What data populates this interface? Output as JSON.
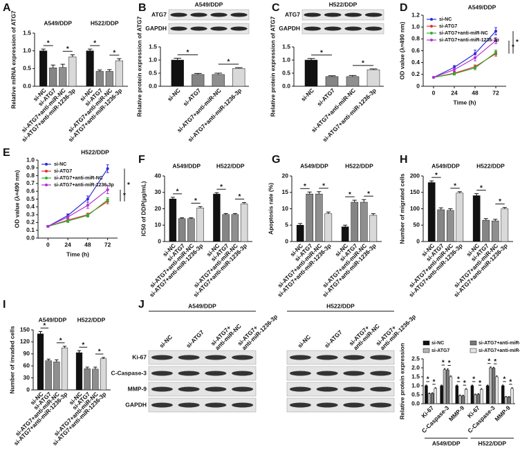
{
  "chart_data": [
    {
      "type": "bar",
      "label": "A",
      "ylabel": "Relative mRNA expression of ATG7",
      "categories": [
        "si-NC",
        "si-ATG7",
        "si-ATG7+anti-miR-NC",
        "si-ATG7+anti-miR-1236-3p"
      ],
      "colors": [
        "#111111",
        "#858585",
        "#8f8f8f",
        "#d9d9d9"
      ],
      "series": [
        {
          "name": "A549/DDP",
          "values": [
            1.0,
            0.52,
            0.53,
            0.83
          ],
          "errors": [
            0.05,
            0.08,
            0.09,
            0.06
          ]
        },
        {
          "name": "H522/DDP",
          "values": [
            1.0,
            0.42,
            0.42,
            0.72
          ],
          "errors": [
            0.05,
            0.04,
            0.05,
            0.06
          ]
        }
      ],
      "ylim": [
        0,
        1.5
      ],
      "yticks": [
        {
          "value": 0,
          "label": "0.0"
        },
        0.5,
        {
          "value": 1,
          "label": "1.0"
        },
        1.5
      ],
      "significance": "*"
    },
    {
      "type": "bar",
      "label": "B",
      "title": "A549/DDP",
      "proteins": [
        "ATG7",
        "GAPDH"
      ],
      "ylabel": "Relative protein expression of ATG7",
      "categories": [
        "si-NC",
        "si-ATG7",
        "si-ATG7+anti-miR-NC",
        "si-ATG7+anti-miR-1236-3p"
      ],
      "colors": [
        "#111111",
        "#858585",
        "#8f8f8f",
        "#d9d9d9"
      ],
      "values": [
        1.0,
        0.45,
        0.45,
        0.68
      ],
      "errors": [
        0.07,
        0.04,
        0.05,
        0.03
      ],
      "ylim": [
        0,
        1.5
      ],
      "yticks": [
        {
          "value": 0,
          "label": "0.0"
        },
        0.5,
        {
          "value": 1,
          "label": "1.0"
        },
        1.5
      ],
      "significance": "*"
    },
    {
      "type": "bar",
      "label": "C",
      "title": "H522/DDP",
      "proteins": [
        "ATG7",
        "GAPDH"
      ],
      "ylabel": "Relative protein expression of ATG7",
      "categories": [
        "si-NC",
        "si-ATG7",
        "si-ATG7+anti-miR-NC",
        "si-ATG7+anti-miR-1236-3p"
      ],
      "colors": [
        "#111111",
        "#858585",
        "#8f8f8f",
        "#d9d9d9"
      ],
      "values": [
        1.0,
        0.37,
        0.37,
        0.63
      ],
      "errors": [
        0.06,
        0.03,
        0.04,
        0.03
      ],
      "ylim": [
        0,
        1.5
      ],
      "yticks": [
        {
          "value": 0,
          "label": "0.0"
        },
        0.5,
        {
          "value": 1,
          "label": "1.0"
        },
        1.5
      ],
      "significance": "*"
    },
    {
      "type": "line",
      "label": "D",
      "title": "A549/DDP",
      "xlabel": "Time (h)",
      "ylabel": "OD value (λ=490 nm)",
      "x": [
        0,
        24,
        48,
        72
      ],
      "xlim": [
        -12,
        84
      ],
      "xticks": [
        0,
        24,
        48,
        72
      ],
      "ylim": [
        0,
        1.2
      ],
      "yticks": [
        0,
        0.2,
        0.4,
        0.6,
        0.8,
        {
          "value": 1,
          "label": "1.0"
        },
        1.2
      ],
      "series": [
        {
          "name": "si-NC",
          "color": "#2b2bd9",
          "values": [
            0.15,
            0.32,
            0.55,
            0.93
          ],
          "errors": [
            0.01,
            0.03,
            0.06,
            0.06
          ]
        },
        {
          "name": "si-ATG7",
          "color": "#e03030",
          "values": [
            0.15,
            0.22,
            0.33,
            0.55
          ],
          "errors": [
            0.01,
            0.02,
            0.03,
            0.04
          ]
        },
        {
          "name": "si-ATG7+anti-miR-NC",
          "color": "#3aa835",
          "values": [
            0.15,
            0.21,
            0.31,
            0.57
          ],
          "errors": [
            0.01,
            0.02,
            0.03,
            0.04
          ]
        },
        {
          "name": "si-ATG7+anti-miR-1236-3p",
          "color": "#b02fd6",
          "values": [
            0.15,
            0.28,
            0.48,
            0.77
          ],
          "errors": [
            0.01,
            0.03,
            0.05,
            0.05
          ]
        }
      ],
      "significance": "*"
    },
    {
      "type": "line",
      "label": "E",
      "title": "H522/DDP",
      "xlabel": "Time (h)",
      "ylabel": "OD value (λ=490 nm)",
      "x": [
        0,
        24,
        48,
        72
      ],
      "xlim": [
        -12,
        84
      ],
      "xticks": [
        0,
        24,
        48,
        72
      ],
      "ylim": [
        0,
        1.0
      ],
      "yticks": [
        {
          "value": 0,
          "label": "0.0"
        },
        0.1,
        0.2,
        0.3,
        0.4,
        0.5,
        0.6,
        0.7,
        0.8,
        0.9,
        {
          "value": 1,
          "label": "1.0"
        }
      ],
      "series": [
        {
          "name": "si-NC",
          "color": "#2b2bd9",
          "values": [
            0.15,
            0.29,
            0.5,
            0.89
          ],
          "errors": [
            0.01,
            0.02,
            0.04,
            0.05
          ]
        },
        {
          "name": "si-ATG7",
          "color": "#e03030",
          "values": [
            0.15,
            0.23,
            0.3,
            0.47
          ],
          "errors": [
            0.01,
            0.02,
            0.02,
            0.03
          ]
        },
        {
          "name": "si-ATG7+anti-miR-NC",
          "color": "#3aa835",
          "values": [
            0.15,
            0.22,
            0.29,
            0.49
          ],
          "errors": [
            0.01,
            0.02,
            0.02,
            0.03
          ]
        },
        {
          "name": "si-ATG7+anti-miR-1236-3p",
          "color": "#b02fd6",
          "values": [
            0.15,
            0.27,
            0.42,
            0.62
          ],
          "errors": [
            0.01,
            0.02,
            0.04,
            0.05
          ]
        }
      ],
      "significance": "*"
    },
    {
      "type": "bar",
      "label": "F",
      "ylabel": "IC50 of DDP(μg/mL)",
      "categories": [
        "si-NC",
        "si-ATG7",
        "si-ATG7+anti-miR-NC",
        "si-ATG7+anti-miR-1236-3p"
      ],
      "colors": [
        "#111111",
        "#858585",
        "#8f8f8f",
        "#d9d9d9"
      ],
      "series": [
        {
          "name": "A549/DDP",
          "values": [
            26,
            14,
            14,
            20.5
          ],
          "errors": [
            1,
            0.5,
            0.5,
            0.8
          ]
        },
        {
          "name": "H522/DDP",
          "values": [
            29,
            16.5,
            16.5,
            23
          ],
          "errors": [
            0.8,
            0.6,
            0.6,
            0.8
          ]
        }
      ],
      "ylim": [
        0,
        40
      ],
      "yticks": [
        0,
        10,
        20,
        30,
        40
      ],
      "significance": "*"
    },
    {
      "type": "bar",
      "label": "G",
      "ylabel": "Apoptosis rate (%)",
      "categories": [
        "si-NC",
        "si-ATG7",
        "si-ATG7+anti-miR-NC",
        "si-ATG7+anti-miR-1236-3p"
      ],
      "colors": [
        "#111111",
        "#858585",
        "#8f8f8f",
        "#d9d9d9"
      ],
      "series": [
        {
          "name": "A549/DDP",
          "values": [
            5,
            14.5,
            14.5,
            8.5
          ],
          "errors": [
            0.5,
            0.6,
            0.7,
            0.5
          ]
        },
        {
          "name": "H522/DDP",
          "values": [
            4.5,
            12,
            12,
            8
          ],
          "errors": [
            0.5,
            0.6,
            0.8,
            0.5
          ]
        }
      ],
      "ylim": [
        0,
        20
      ],
      "yticks": [
        0,
        5,
        10,
        15,
        20
      ],
      "significance": "*"
    },
    {
      "type": "bar",
      "label": "H",
      "ylabel": "Number of migrated cells",
      "categories": [
        "si-NC",
        "si-ATG7",
        "si-ATG7+anti-miR-NC",
        "si-ATG7+anti-miR-1236-3p"
      ],
      "colors": [
        "#111111",
        "#858585",
        "#8f8f8f",
        "#d9d9d9"
      ],
      "series": [
        {
          "name": "A549/DDP",
          "values": [
            180,
            97,
            95,
            148
          ],
          "errors": [
            5,
            6,
            5,
            4
          ]
        },
        {
          "name": "H522/DDP",
          "values": [
            140,
            65,
            63,
            100
          ],
          "errors": [
            6,
            5,
            5,
            4
          ]
        }
      ],
      "ylim": [
        0,
        200
      ],
      "yticks": [
        0,
        50,
        100,
        150,
        200
      ],
      "significance": "*"
    },
    {
      "type": "bar",
      "label": "I",
      "ylabel": "Number of invaded cells",
      "categories": [
        "si-NC",
        "si-ATG7",
        "si-ATG7+anti-miR-NC",
        "si-ATG7+anti-miR-1236-3p"
      ],
      "colors": [
        "#111111",
        "#858585",
        "#8f8f8f",
        "#d9d9d9"
      ],
      "series": [
        {
          "name": "A549/DDP",
          "values": [
            140,
            73,
            70,
            105
          ],
          "errors": [
            6,
            4,
            5,
            4
          ]
        },
        {
          "name": "H522/DDP",
          "values": [
            93,
            53,
            52,
            78
          ],
          "errors": [
            5,
            4,
            5,
            3
          ]
        }
      ],
      "ylim": [
        0,
        150
      ],
      "yticks": [
        0,
        30,
        60,
        90,
        120,
        150
      ],
      "significance": "*"
    },
    {
      "type": "bar",
      "label": "J",
      "blot_titles": [
        "A549/DDP",
        "H522/DDP"
      ],
      "lanes": [
        [
          "si-NC"
        ],
        [
          "si-ATG7"
        ],
        [
          "si-ATG7+",
          "anti-miR-NC"
        ],
        [
          "si-ATG7+",
          "anti-miR-1236-3p"
        ]
      ],
      "proteins": [
        "Ki-67",
        "C-Caspase-3",
        "MMP-9",
        "GAPDH"
      ],
      "ylabel": "Relative protein expression",
      "categories": [
        "Ki-67",
        "C-Caspase-3",
        "MMP-9",
        "Ki-67",
        "C-Caspase-3",
        "MMP-9"
      ],
      "groups": [
        "A549/DDP",
        "H522/DDP"
      ],
      "series": [
        {
          "name": "si-NC",
          "color": "#111111",
          "values": [
            1.0,
            1.0,
            1.0,
            1.0,
            1.0,
            1.0
          ],
          "errors": [
            0.04,
            0.04,
            0.04,
            0.04,
            0.04,
            0.04
          ]
        },
        {
          "name": "si-ATG7",
          "color": "#b3b3b3",
          "values": [
            0.55,
            1.9,
            0.45,
            0.5,
            2.0,
            0.38
          ],
          "errors": [
            0.04,
            0.06,
            0.04,
            0.04,
            0.05,
            0.03
          ]
        },
        {
          "name": "si-ATG7+anti-miR-NC",
          "color": "#777777",
          "values": [
            0.57,
            1.88,
            0.43,
            0.52,
            1.98,
            0.37
          ],
          "errors": [
            0.04,
            0.06,
            0.04,
            0.04,
            0.05,
            0.03
          ]
        },
        {
          "name": "si-ATG7+anti-miR-1236-3p",
          "color": "#e3e3e3",
          "values": [
            0.85,
            1.5,
            0.8,
            0.8,
            1.5,
            0.85
          ],
          "errors": [
            0.04,
            0.05,
            0.04,
            0.04,
            0.05,
            0.04
          ]
        }
      ],
      "ylim": [
        0,
        2.5
      ],
      "yticks": [
        {
          "value": 0,
          "label": "0.0"
        },
        0.5,
        {
          "value": 1,
          "label": "1.0"
        },
        1.5,
        {
          "value": 2,
          "label": "2.0"
        },
        2.5
      ],
      "significance": "*"
    }
  ]
}
